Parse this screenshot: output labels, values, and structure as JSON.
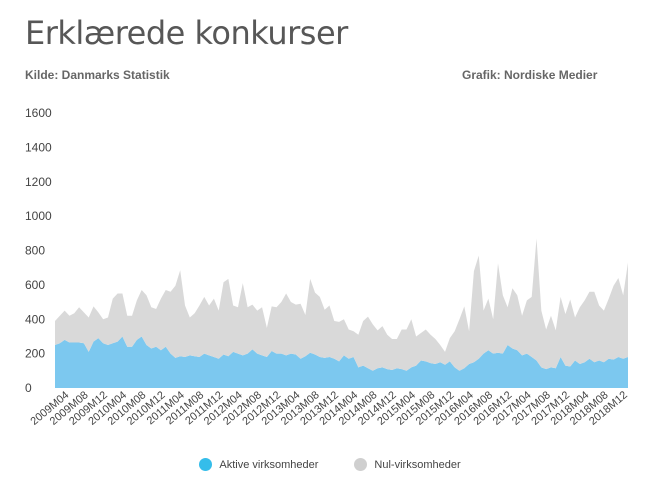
{
  "header": {
    "title": "Erklærede konkurser",
    "source": "Kilde: Danmarks Statistik",
    "credit": "Grafik: Nordiske Medier"
  },
  "chart_data": {
    "type": "area",
    "stacked": true,
    "ylim": [
      0,
      1600
    ],
    "yticks": [
      0,
      200,
      400,
      600,
      800,
      1000,
      1200,
      1400,
      1600
    ],
    "xtick_labels": [
      "2009M04",
      "2009M08",
      "2009M12",
      "2010M04",
      "2010M08",
      "2010M12",
      "2011M04",
      "2011M08",
      "2011M12",
      "2012M04",
      "2012M08",
      "2012M12",
      "2013M04",
      "2013M08",
      "2013M12",
      "2014M04",
      "2014M08",
      "2014M12",
      "2015M04",
      "2015M08",
      "2015M12",
      "2016M04",
      "2016M08",
      "2016M12",
      "2017M04",
      "2017M08",
      "2017M12",
      "2018M04",
      "2018M08",
      "2018M12"
    ],
    "x": [
      "2009M01",
      "2009M02",
      "2009M03",
      "2009M04",
      "2009M05",
      "2009M06",
      "2009M07",
      "2009M08",
      "2009M09",
      "2009M10",
      "2009M11",
      "2009M12",
      "2010M01",
      "2010M02",
      "2010M03",
      "2010M04",
      "2010M05",
      "2010M06",
      "2010M07",
      "2010M08",
      "2010M09",
      "2010M10",
      "2010M11",
      "2010M12",
      "2011M01",
      "2011M02",
      "2011M03",
      "2011M04",
      "2011M05",
      "2011M06",
      "2011M07",
      "2011M08",
      "2011M09",
      "2011M10",
      "2011M11",
      "2011M12",
      "2012M01",
      "2012M02",
      "2012M03",
      "2012M04",
      "2012M05",
      "2012M06",
      "2012M07",
      "2012M08",
      "2012M09",
      "2012M10",
      "2012M11",
      "2012M12",
      "2013M01",
      "2013M02",
      "2013M03",
      "2013M04",
      "2013M05",
      "2013M06",
      "2013M07",
      "2013M08",
      "2013M09",
      "2013M10",
      "2013M11",
      "2013M12",
      "2014M01",
      "2014M02",
      "2014M03",
      "2014M04",
      "2014M05",
      "2014M06",
      "2014M07",
      "2014M08",
      "2014M09",
      "2014M10",
      "2014M11",
      "2014M12",
      "2015M01",
      "2015M02",
      "2015M03",
      "2015M04",
      "2015M05",
      "2015M06",
      "2015M07",
      "2015M08",
      "2015M09",
      "2015M10",
      "2015M11",
      "2015M12",
      "2016M01",
      "2016M02",
      "2016M03",
      "2016M04",
      "2016M05",
      "2016M06",
      "2016M07",
      "2016M08",
      "2016M09",
      "2016M10",
      "2016M11",
      "2016M12",
      "2017M01",
      "2017M02",
      "2017M03",
      "2017M04",
      "2017M05",
      "2017M06",
      "2017M07",
      "2017M08",
      "2017M09",
      "2017M10",
      "2017M11",
      "2017M12",
      "2018M01",
      "2018M02",
      "2018M03",
      "2018M04",
      "2018M05",
      "2018M06",
      "2018M07",
      "2018M08",
      "2018M09",
      "2018M10",
      "2018M11",
      "2018M12"
    ],
    "series": [
      {
        "name": "Aktive virksomheder",
        "color": "#7cc8ef",
        "values": [
          250,
          260,
          280,
          265,
          265,
          265,
          260,
          210,
          270,
          290,
          260,
          250,
          260,
          270,
          300,
          240,
          240,
          280,
          300,
          250,
          230,
          240,
          220,
          240,
          200,
          175,
          185,
          180,
          190,
          185,
          180,
          200,
          190,
          180,
          170,
          195,
          185,
          210,
          200,
          190,
          200,
          225,
          200,
          190,
          180,
          215,
          200,
          200,
          190,
          200,
          195,
          170,
          185,
          205,
          195,
          180,
          175,
          180,
          170,
          155,
          190,
          170,
          180,
          120,
          130,
          115,
          100,
          115,
          120,
          110,
          105,
          115,
          110,
          100,
          120,
          130,
          160,
          155,
          145,
          140,
          150,
          135,
          155,
          120,
          100,
          115,
          140,
          150,
          170,
          200,
          220,
          200,
          205,
          200,
          250,
          230,
          220,
          190,
          200,
          180,
          160,
          120,
          110,
          120,
          115,
          180,
          130,
          125,
          160,
          140,
          150,
          170,
          150,
          160,
          150,
          170,
          165,
          180,
          170,
          180
        ]
      },
      {
        "name": "Nul-virksomheder",
        "color": "#d9d9d9",
        "values": [
          140,
          160,
          170,
          155,
          170,
          205,
          180,
          200,
          205,
          150,
          140,
          160,
          260,
          280,
          250,
          180,
          180,
          230,
          270,
          290,
          240,
          220,
          300,
          330,
          360,
          420,
          500,
          300,
          220,
          250,
          300,
          330,
          290,
          340,
          280,
          420,
          450,
          270,
          270,
          420,
          270,
          260,
          250,
          280,
          170,
          260,
          270,
          300,
          360,
          300,
          290,
          320,
          240,
          430,
          360,
          350,
          280,
          300,
          220,
          230,
          210,
          170,
          150,
          190,
          260,
          300,
          270,
          220,
          240,
          200,
          180,
          170,
          230,
          240,
          280,
          170,
          160,
          185,
          165,
          145,
          100,
          75,
          135,
          210,
          300,
          360,
          190,
          530,
          600,
          250,
          300,
          200,
          520,
          340,
          220,
          350,
          320,
          230,
          310,
          350,
          710,
          330,
          230,
          300,
          220,
          350,
          300,
          390,
          250,
          330,
          360,
          390,
          410,
          320,
          300,
          350,
          430,
          460,
          370,
          550
        ]
      }
    ],
    "legend_position": "bottom"
  },
  "legend": {
    "item1": "Aktive virksomheder",
    "item2": "Nul-virksomheder"
  }
}
